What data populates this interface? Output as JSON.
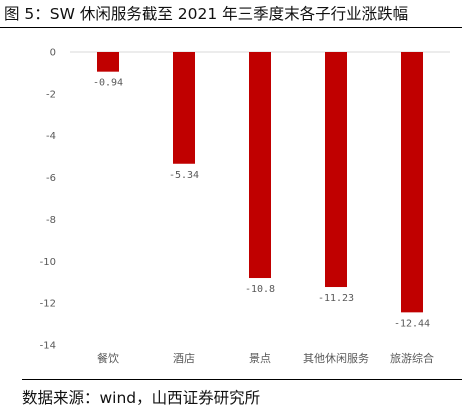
{
  "figure": {
    "caption": "图 5：SW 休闲服务截至 2021 年三季度末各子行业涨跌幅",
    "source": "数据来源：wind，山西证券研究所"
  },
  "chart_data": {
    "type": "bar",
    "categories": [
      "餐饮",
      "酒店",
      "景点",
      "其他休闲服务",
      "旅游综合"
    ],
    "values": [
      -0.94,
      -5.34,
      -10.8,
      -11.23,
      -12.44
    ],
    "data_labels": [
      "-0.94",
      "-5.34",
      "-10.8",
      "-11.23",
      "-12.44"
    ],
    "y_ticks": [
      0,
      -2,
      -4,
      -6,
      -8,
      -10,
      -12,
      -14
    ],
    "ylim": [
      -14,
      0
    ],
    "bar_color": "#c00000",
    "axis_color": "#d9d9d9",
    "grid": false,
    "legend": "none"
  }
}
